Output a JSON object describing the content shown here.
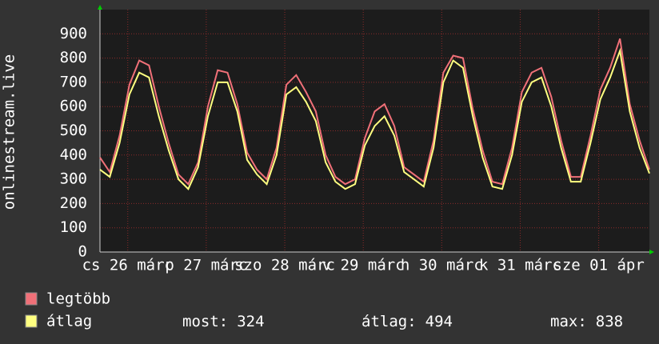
{
  "chart_data": {
    "type": "line",
    "y_label": "onlinestream.live",
    "x": [
      0,
      3,
      6,
      9,
      12,
      15,
      18,
      21,
      24,
      27,
      30,
      33,
      36,
      39,
      42,
      45,
      48,
      51,
      54,
      57,
      60,
      63,
      66,
      69,
      72,
      75,
      78,
      81,
      84,
      87,
      90,
      93,
      96,
      99,
      102,
      105,
      108,
      111,
      114,
      117,
      120,
      123,
      126,
      129,
      132,
      135,
      138,
      141,
      144,
      147,
      150,
      153,
      156,
      159,
      162,
      165,
      168
    ],
    "xlim": [
      0,
      168
    ],
    "xticks": [
      {
        "value": 8.5,
        "label": "cs 26 márc"
      },
      {
        "value": 32.5,
        "label": "p 27 márc"
      },
      {
        "value": 56.5,
        "label": "szo 28 márc"
      },
      {
        "value": 80.5,
        "label": "v 29 márc"
      },
      {
        "value": 104.5,
        "label": "h 30 márc"
      },
      {
        "value": 128.5,
        "label": "k 31 márc"
      },
      {
        "value": 152.5,
        "label": "sze 01 ápr"
      }
    ],
    "ylim": [
      0,
      1000
    ],
    "yticks": [
      0,
      100,
      200,
      300,
      400,
      500,
      600,
      700,
      800,
      900
    ],
    "grid": true,
    "series": [
      {
        "name": "legtöbb",
        "color": "#f07078",
        "values": [
          390,
          330,
          480,
          690,
          790,
          770,
          600,
          450,
          320,
          280,
          370,
          600,
          750,
          740,
          610,
          410,
          340,
          300,
          430,
          690,
          730,
          660,
          580,
          400,
          310,
          280,
          300,
          470,
          580,
          610,
          520,
          350,
          320,
          290,
          460,
          740,
          810,
          800,
          590,
          420,
          290,
          280,
          430,
          660,
          740,
          760,
          640,
          460,
          310,
          310,
          480,
          670,
          760,
          880,
          610,
          460,
          340
        ]
      },
      {
        "name": "átlag",
        "color": "#ffff80",
        "values": [
          340,
          310,
          450,
          650,
          740,
          720,
          560,
          420,
          300,
          260,
          350,
          560,
          700,
          700,
          580,
          380,
          320,
          280,
          400,
          650,
          680,
          620,
          540,
          370,
          290,
          260,
          280,
          440,
          520,
          560,
          480,
          330,
          300,
          270,
          430,
          700,
          790,
          760,
          560,
          390,
          270,
          260,
          400,
          620,
          700,
          720,
          600,
          430,
          290,
          290,
          450,
          630,
          720,
          830,
          580,
          430,
          324
        ]
      }
    ],
    "stats": [
      {
        "label": "most:",
        "value": 324
      },
      {
        "label": "átlag:",
        "value": 494
      },
      {
        "label": "max:",
        "value": 838
      }
    ]
  }
}
